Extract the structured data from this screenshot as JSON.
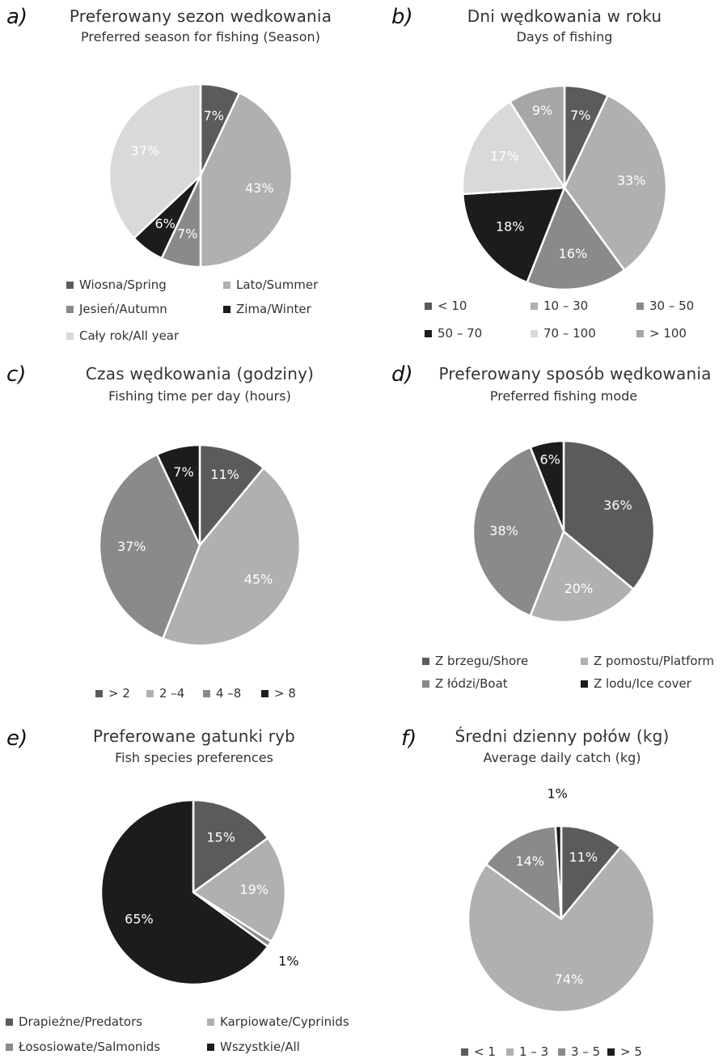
{
  "chart_data": [
    {
      "type": "pie",
      "panel": "a)",
      "title": "Preferowany sezon  wedkowania",
      "subtitle": "Preferred season for fishing (Season)",
      "categories": [
        "Wiosna/Spring",
        "Lato/Summer",
        "Jesień/Autumn",
        "Zima/Winter",
        "Cały rok/All year"
      ],
      "values": [
        7,
        43,
        7,
        6,
        37
      ],
      "labels": [
        "7%",
        "43%",
        "7%",
        "6%",
        "37%"
      ],
      "colors": [
        "#5b5b5b",
        "#b0b0b0",
        "#8a8a8a",
        "#1c1c1c",
        "#d9d9d9"
      ],
      "label_colors": [
        "#ffffff",
        "#ffffff",
        "#ffffff",
        "#ffffff",
        "#ffffff"
      ],
      "legend_position": "bottom"
    },
    {
      "type": "pie",
      "panel": "b)",
      "title": "Dni wędkowania w roku",
      "subtitle": "Days of fishing",
      "categories": [
        "< 10",
        "10 – 30",
        "30 – 50",
        "50 – 70",
        "70 – 100",
        "> 100"
      ],
      "values": [
        7,
        33,
        16,
        18,
        17,
        9
      ],
      "labels": [
        "7%",
        "33%",
        "16%",
        "18%",
        "17%",
        "9%"
      ],
      "colors": [
        "#5b5b5b",
        "#b0b0b0",
        "#8a8a8a",
        "#1c1c1c",
        "#d9d9d9",
        "#a6a6a6"
      ],
      "label_colors": [
        "#ffffff",
        "#ffffff",
        "#ffffff",
        "#ffffff",
        "#ffffff",
        "#ffffff"
      ],
      "legend_position": "bottom"
    },
    {
      "type": "pie",
      "panel": "c)",
      "title": "Czas wędkowania (godziny)",
      "subtitle": "Fishing time per day (hours)",
      "categories": [
        "> 2",
        "2 –4",
        "4 –8",
        "> 8"
      ],
      "values": [
        11,
        45,
        37,
        7
      ],
      "labels": [
        "11%",
        "45%",
        "37%",
        "7%"
      ],
      "colors": [
        "#5b5b5b",
        "#b0b0b0",
        "#8a8a8a",
        "#1c1c1c"
      ],
      "label_colors": [
        "#ffffff",
        "#ffffff",
        "#ffffff",
        "#ffffff"
      ],
      "legend_position": "bottom"
    },
    {
      "type": "pie",
      "panel": "d)",
      "title": "Preferowany sposób wędkowania",
      "subtitle": "Preferred fishing mode",
      "categories": [
        "Z brzegu/Shore",
        "Z pomostu/Platform",
        "Z łódzi/Boat",
        "Z lodu/Ice cover"
      ],
      "values": [
        36,
        20,
        38,
        6
      ],
      "labels": [
        "36%",
        "20%",
        "38%",
        "6%"
      ],
      "colors": [
        "#5b5b5b",
        "#b0b0b0",
        "#8a8a8a",
        "#1c1c1c"
      ],
      "label_colors": [
        "#ffffff",
        "#ffffff",
        "#ffffff",
        "#ffffff"
      ],
      "legend_position": "bottom"
    },
    {
      "type": "pie",
      "panel": "e)",
      "title": "Preferowane gatunki ryb",
      "subtitle": "Fish species preferences",
      "categories": [
        "Drapieżne/Predators",
        "Karpiowate/Cyprinids",
        "Łososiowate/Salmonids",
        "Wszystkie/All"
      ],
      "values": [
        15,
        19,
        1,
        65
      ],
      "labels": [
        "15%",
        "19%",
        "1%",
        "65%"
      ],
      "colors": [
        "#5b5b5b",
        "#b0b0b0",
        "#8a8a8a",
        "#1c1c1c"
      ],
      "label_colors": [
        "#ffffff",
        "#ffffff",
        "#111111",
        "#ffffff"
      ],
      "legend_position": "bottom"
    },
    {
      "type": "pie",
      "panel": "f)",
      "title": "Średni dzienny połów (kg)",
      "subtitle": "Average daily catch (kg)",
      "categories": [
        "< 1",
        "1 – 3",
        "3 – 5",
        "> 5"
      ],
      "values": [
        11,
        74,
        14,
        1
      ],
      "labels": [
        "11%",
        "74%",
        "14%",
        "1%"
      ],
      "colors": [
        "#5b5b5b",
        "#b0b0b0",
        "#8a8a8a",
        "#1c1c1c"
      ],
      "label_colors": [
        "#ffffff",
        "#ffffff",
        "#ffffff",
        "#111111"
      ],
      "legend_position": "bottom"
    }
  ]
}
